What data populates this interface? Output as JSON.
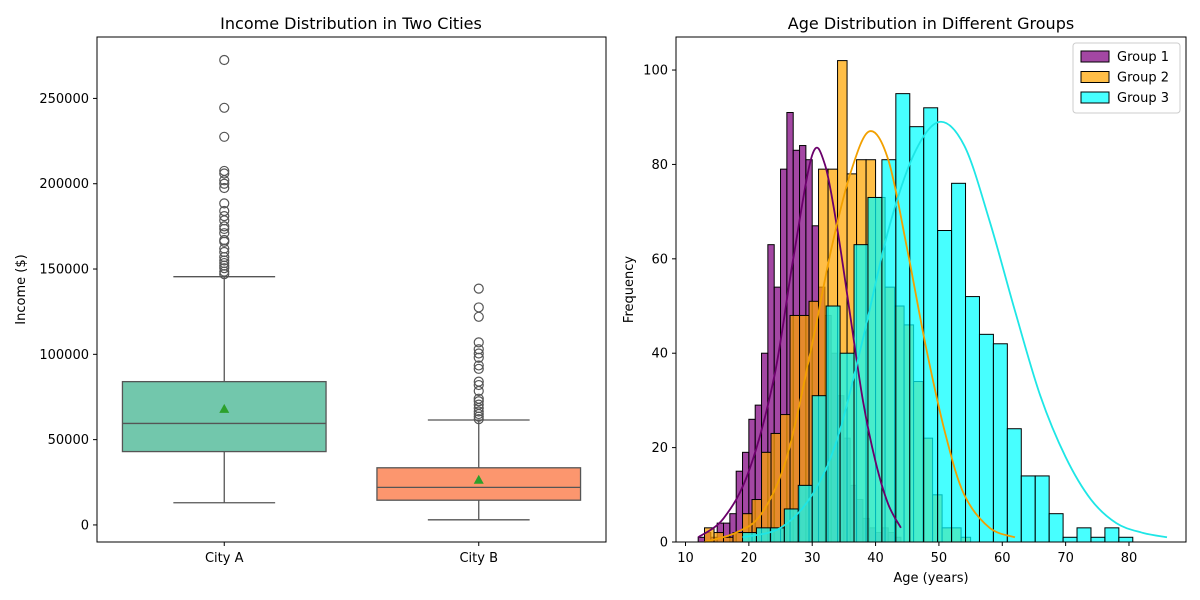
{
  "chart_data": [
    {
      "type": "box",
      "title": "Income Distribution in Two Cities",
      "xlabel": "",
      "ylabel": "Income ($)",
      "ylim": [
        -10000,
        286000
      ],
      "yticks": [
        0,
        50000,
        100000,
        150000,
        200000,
        250000
      ],
      "categories": [
        "City A",
        "City B"
      ],
      "boxes": [
        {
          "category": "City A",
          "color": "#66c2a5",
          "whisker_low": 13000,
          "q1": 43000,
          "median": 59500,
          "q3": 84000,
          "whisker_high": 145500,
          "mean": 68000,
          "outliers": [
            147000,
            148500,
            150500,
            152000,
            153500,
            155000,
            157000,
            160000,
            162000,
            166000,
            167000,
            171000,
            173500,
            175000,
            178500,
            181000,
            184000,
            188500,
            197500,
            200000,
            202000,
            206000,
            207500,
            227500,
            244500,
            272500
          ]
        },
        {
          "category": "City B",
          "color": "#fc8d62",
          "whisker_low": 3000,
          "q1": 14500,
          "median": 22000,
          "q3": 33500,
          "whisker_high": 61500,
          "mean": 26500,
          "outliers": [
            62000,
            63500,
            65000,
            66500,
            68500,
            70500,
            72500,
            74000,
            78500,
            82000,
            84000,
            91500,
            93500,
            98000,
            100500,
            103000,
            107000,
            122000,
            127500,
            138500
          ]
        }
      ],
      "mean_marker_color": "#2ca02c"
    },
    {
      "type": "histogram",
      "title": "Age Distribution in Different Groups",
      "xlabel": "Age (years)",
      "ylabel": "Frequency",
      "xlim": [
        8.5,
        89
      ],
      "ylim": [
        0,
        107
      ],
      "xticks": [
        10,
        20,
        30,
        40,
        50,
        60,
        70,
        80
      ],
      "yticks": [
        0,
        20,
        40,
        60,
        80,
        100
      ],
      "legend_position": "top-right",
      "series": [
        {
          "name": "Group 1",
          "color": "#800080",
          "line_color": "#6b006b",
          "bin_start": 12,
          "bin_width": 1.0,
          "counts": [
            1,
            2,
            1,
            4,
            4,
            6,
            15,
            19,
            26,
            29,
            40,
            63,
            54,
            79,
            91,
            83,
            84,
            81,
            67,
            54,
            48,
            40,
            31,
            22,
            12,
            9,
            5,
            3,
            2,
            3,
            2,
            1
          ],
          "kde_x": [
            12,
            16,
            20,
            24,
            27,
            30,
            32,
            34,
            36,
            38,
            40,
            42,
            44
          ],
          "kde_y": [
            1,
            5,
            15,
            35,
            60,
            82,
            80,
            66,
            48,
            30,
            17,
            8,
            3
          ]
        },
        {
          "name": "Group 2",
          "color": "#ffa500",
          "line_color": "#f2a000",
          "bin_start": 13,
          "bin_width": 1.5,
          "counts": [
            3,
            2,
            1,
            2,
            6,
            9,
            19,
            23,
            27,
            48,
            48,
            51,
            79,
            79,
            102,
            78,
            81,
            81,
            73,
            54,
            50,
            46,
            34,
            22,
            10,
            3,
            3,
            1
          ],
          "kde_x": [
            13,
            18,
            22,
            26,
            30,
            33,
            36,
            39,
            42,
            45,
            48,
            51,
            54,
            58,
            62
          ],
          "kde_y": [
            0,
            2,
            6,
            18,
            42,
            62,
            78,
            87,
            81,
            62,
            41,
            23,
            10,
            3,
            1
          ]
        },
        {
          "name": "Group 3",
          "color": "#00ffff",
          "line_color": "#1ee6e6",
          "bin_start": 19,
          "bin_width": 2.2,
          "counts": [
            2,
            3,
            3,
            7,
            12,
            31,
            50,
            40,
            63,
            73,
            81,
            95,
            88,
            92,
            66,
            76,
            52,
            44,
            42,
            24,
            14,
            14,
            6,
            1,
            3,
            1,
            3,
            1
          ],
          "kde_x": [
            19,
            25,
            30,
            34,
            38,
            42,
            46,
            50,
            54,
            58,
            62,
            66,
            70,
            74,
            78,
            82,
            86
          ],
          "kde_y": [
            1,
            3,
            10,
            22,
            43,
            66,
            82,
            89,
            84,
            68,
            49,
            31,
            18,
            9,
            4,
            2,
            1
          ]
        }
      ]
    }
  ]
}
